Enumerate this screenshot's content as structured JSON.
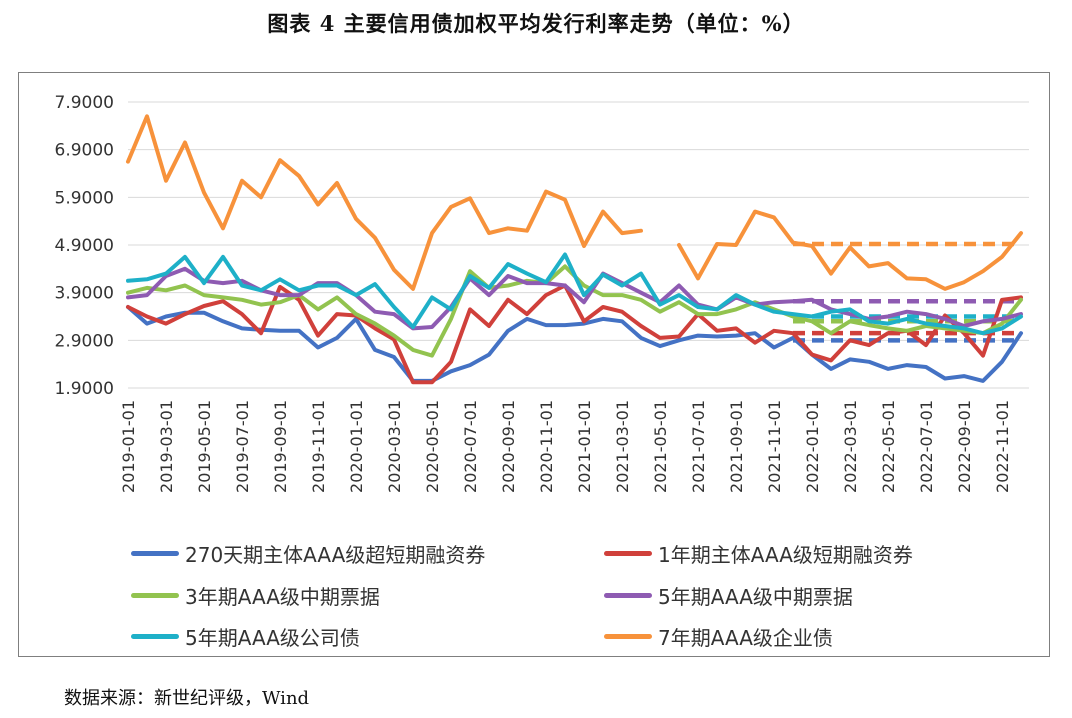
{
  "chart_data": {
    "type": "line",
    "title": "图表 4   主要信用债加权平均发行利率走势（单位：%）",
    "ylim": [
      1.9,
      7.9
    ],
    "yticks": [
      "1.9000",
      "2.9000",
      "3.9000",
      "4.9000",
      "5.9000",
      "6.9000",
      "7.9000"
    ],
    "ytick_values": [
      1.9,
      2.9,
      3.9,
      4.9,
      5.9,
      6.9,
      7.9
    ],
    "x_tick_labels": [
      "2019-01-01",
      "2019-03-01",
      "2019-05-01",
      "2019-07-01",
      "2019-09-01",
      "2019-11-01",
      "2020-01-01",
      "2020-03-01",
      "2020-05-01",
      "2020-07-01",
      "2020-09-01",
      "2020-11-01",
      "2021-01-01",
      "2021-03-01",
      "2021-05-01",
      "2021-07-01",
      "2021-09-01",
      "2021-11-01",
      "2022-01-01",
      "2022-03-01",
      "2022-05-01",
      "2022-07-01",
      "2022-09-01",
      "2022-11-01"
    ],
    "n_points": 48,
    "series": [
      {
        "name": "270天期主体AAA级超短期融资券",
        "color": "#4472C4",
        "values": [
          3.6,
          3.25,
          3.4,
          3.48,
          3.48,
          3.3,
          3.15,
          3.12,
          3.1,
          3.1,
          2.75,
          2.95,
          3.35,
          2.7,
          2.55,
          2.05,
          2.05,
          2.25,
          2.38,
          2.6,
          3.1,
          3.35,
          3.22,
          3.22,
          3.25,
          3.35,
          3.3,
          2.95,
          2.78,
          2.9,
          3.0,
          2.98,
          3.0,
          3.05,
          2.75,
          2.95,
          2.6,
          2.3,
          2.5,
          2.45,
          2.3,
          2.38,
          2.34,
          2.1,
          2.15,
          2.05,
          2.45,
          3.05
        ],
        "ref": 2.9
      },
      {
        "name": "1年期主体AAA级短期融资券",
        "color": "#D0403B",
        "values": [
          3.6,
          3.4,
          3.25,
          3.45,
          3.62,
          3.72,
          3.45,
          3.05,
          4.02,
          3.75,
          3.0,
          3.45,
          3.42,
          3.15,
          2.92,
          2.02,
          2.02,
          2.45,
          3.55,
          3.2,
          3.75,
          3.45,
          3.85,
          4.05,
          3.3,
          3.6,
          3.5,
          3.2,
          2.95,
          2.98,
          3.45,
          3.1,
          3.15,
          2.85,
          3.1,
          3.05,
          2.6,
          2.48,
          2.9,
          2.8,
          3.05,
          3.1,
          2.8,
          3.42,
          3.05,
          2.58,
          3.75,
          3.8
        ],
        "ref": 3.05
      },
      {
        "name": "3年期AAA级中期票据",
        "color": "#92C34F",
        "values": [
          3.9,
          4.0,
          3.95,
          4.05,
          3.85,
          3.8,
          3.75,
          3.65,
          3.7,
          3.85,
          3.55,
          3.8,
          3.45,
          3.25,
          3.0,
          2.7,
          2.58,
          3.35,
          4.35,
          4.0,
          4.05,
          4.15,
          4.1,
          4.45,
          4.05,
          3.85,
          3.85,
          3.75,
          3.5,
          3.7,
          3.45,
          3.45,
          3.55,
          3.7,
          3.55,
          3.4,
          3.3,
          3.05,
          3.3,
          3.22,
          3.15,
          3.1,
          3.2,
          3.15,
          3.1,
          3.05,
          3.25,
          3.75
        ],
        "ref": 3.3
      },
      {
        "name": "5年期AAA级中期票据",
        "color": "#8E5BB2",
        "values": [
          3.8,
          3.85,
          4.25,
          4.4,
          4.15,
          4.1,
          4.15,
          3.95,
          3.85,
          3.85,
          4.1,
          4.1,
          3.85,
          3.5,
          3.45,
          3.15,
          3.18,
          3.6,
          4.2,
          3.85,
          4.25,
          4.1,
          4.1,
          4.05,
          3.7,
          4.3,
          4.1,
          3.9,
          3.7,
          4.05,
          3.65,
          3.55,
          3.8,
          3.65,
          3.7,
          3.72,
          3.75,
          3.55,
          3.45,
          3.35,
          3.4,
          3.5,
          3.45,
          3.35,
          3.2,
          3.3,
          3.35,
          3.45
        ],
        "ref": 3.72
      },
      {
        "name": "5年期AAA级公司债",
        "color": "#1EB0C8",
        "values": [
          4.15,
          4.18,
          4.3,
          4.65,
          4.1,
          4.65,
          4.05,
          3.95,
          4.18,
          3.95,
          4.05,
          4.05,
          3.85,
          4.08,
          3.6,
          3.18,
          3.8,
          3.55,
          4.25,
          4.0,
          4.5,
          4.3,
          4.12,
          4.7,
          3.85,
          4.28,
          4.05,
          4.3,
          3.65,
          3.85,
          3.6,
          3.55,
          3.85,
          3.65,
          3.5,
          3.45,
          3.4,
          3.5,
          3.55,
          3.3,
          3.25,
          3.35,
          3.25,
          3.2,
          3.15,
          3.05,
          3.15,
          3.4
        ],
        "ref": 3.4
      },
      {
        "name": "7年期AAA级企业债",
        "color": "#F7923B",
        "values": [
          6.65,
          7.6,
          6.25,
          7.05,
          6.0,
          5.25,
          6.25,
          5.9,
          6.68,
          6.35,
          5.75,
          6.2,
          5.45,
          5.05,
          4.38,
          3.98,
          5.15,
          5.7,
          5.88,
          5.15,
          5.25,
          5.2,
          6.02,
          5.85,
          4.88,
          5.6,
          5.15,
          5.2,
          null,
          4.9,
          4.2,
          4.92,
          4.9,
          5.6,
          5.48,
          4.95,
          4.88,
          4.3,
          4.85,
          4.45,
          4.52,
          4.2,
          4.18,
          3.98,
          4.12,
          4.35,
          4.65,
          5.15
        ],
        "ref": 4.92
      }
    ],
    "legend": [
      "270天期主体AAA级超短期融资券",
      "1年期主体AAA级短期融资券",
      "3年期AAA级中期票据",
      "5年期AAA级中期票据",
      "5年期AAA级公司债",
      "7年期AAA级企业债"
    ],
    "source": "数据来源：新世纪评级，Wind"
  }
}
